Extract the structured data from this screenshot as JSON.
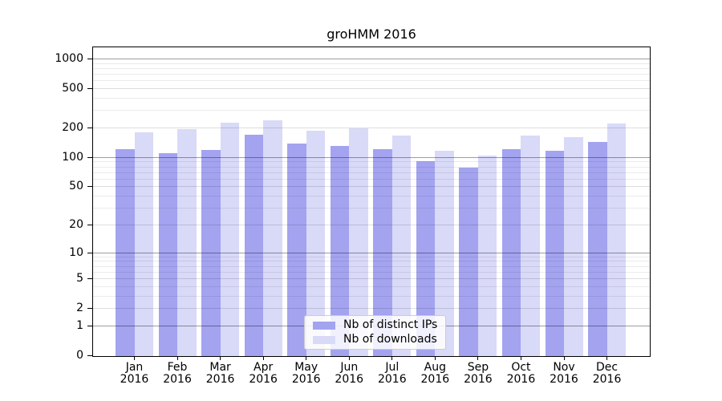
{
  "chart_data": {
    "type": "bar",
    "title": "groHMM 2016",
    "categories": [
      "Jan",
      "Feb",
      "Mar",
      "Apr",
      "May",
      "Jun",
      "Jul",
      "Aug",
      "Sep",
      "Oct",
      "Nov",
      "Dec"
    ],
    "x_year_label": "2016",
    "series": [
      {
        "name": "Nb of distinct IPs",
        "color": "#a3a3f0",
        "values": [
          120,
          110,
          118,
          168,
          137,
          129,
          120,
          90,
          78,
          120,
          116,
          142
        ]
      },
      {
        "name": "Nb of downloads",
        "color": "#d9d9f8",
        "values": [
          178,
          192,
          222,
          237,
          187,
          196,
          167,
          115,
          104,
          167,
          160,
          221
        ]
      }
    ],
    "y_scale": "log10(1+x)",
    "y_ticks": [
      0,
      1,
      2,
      5,
      10,
      20,
      50,
      100,
      200,
      500,
      1000
    ],
    "ylim": [
      0,
      1000
    ],
    "grid": true,
    "grid_major_values": [
      1,
      10,
      100,
      1000
    ],
    "legend_position": "lower center inside plot",
    "axis_color": "#000000",
    "background_color": "#ffffff"
  }
}
